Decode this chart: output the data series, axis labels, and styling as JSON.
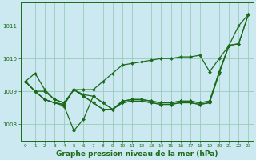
{
  "background_color": "#cce8f0",
  "grid_color": "#99ccbb",
  "line_color": "#1a6b1a",
  "marker_color": "#1a6b1a",
  "xlabel": "Graphe pression niveau de la mer (hPa)",
  "xlabel_fontsize": 6.5,
  "ylim": [
    1007.5,
    1011.7
  ],
  "xlim": [
    -0.5,
    23.5
  ],
  "yticks": [
    1008,
    1009,
    1010,
    1011
  ],
  "xticks": [
    0,
    1,
    2,
    3,
    4,
    5,
    6,
    7,
    8,
    9,
    10,
    11,
    12,
    13,
    14,
    15,
    16,
    17,
    18,
    19,
    20,
    21,
    22,
    23
  ],
  "series": [
    {
      "x": [
        0,
        1,
        2,
        3,
        4,
        5,
        6,
        7,
        8,
        9,
        10,
        11,
        12,
        13,
        14,
        15,
        16,
        17,
        18,
        19,
        20,
        21,
        22,
        23
      ],
      "y": [
        1009.3,
        1009.55,
        1009.05,
        1008.75,
        1008.65,
        1009.05,
        1009.05,
        1009.05,
        1009.3,
        1009.55,
        1009.8,
        1009.85,
        1009.9,
        1009.95,
        1010.0,
        1010.0,
        1010.05,
        1010.05,
        1010.1,
        1009.6,
        1010.0,
        1010.4,
        1010.45,
        1011.35
      ]
    },
    {
      "x": [
        0,
        1,
        2,
        3,
        4,
        5,
        6,
        7,
        8,
        9,
        10,
        11,
        12,
        13,
        14,
        15,
        16,
        17,
        18,
        19,
        20,
        21,
        22,
        23
      ],
      "y": [
        1009.3,
        1009.0,
        1009.0,
        1008.75,
        1008.65,
        1009.05,
        1008.9,
        1008.85,
        1008.65,
        1008.45,
        1008.7,
        1008.75,
        1008.75,
        1008.7,
        1008.65,
        1008.65,
        1008.7,
        1008.7,
        1008.65,
        1008.7,
        1009.6,
        1010.4,
        1010.45,
        1011.35
      ]
    },
    {
      "x": [
        0,
        1,
        2,
        3,
        4,
        5,
        6,
        7,
        8,
        9,
        10,
        11,
        12,
        13,
        14,
        15,
        16,
        17,
        18,
        19,
        20,
        21,
        22,
        23
      ],
      "y": [
        1009.3,
        1009.0,
        1008.75,
        1008.65,
        1008.55,
        1007.8,
        1008.15,
        1008.85,
        1008.65,
        1008.45,
        1008.7,
        1008.75,
        1008.75,
        1008.7,
        1008.65,
        1008.65,
        1008.7,
        1008.7,
        1008.65,
        1008.7,
        1009.6,
        1010.4,
        1011.0,
        1011.35
      ]
    },
    {
      "x": [
        0,
        1,
        2,
        3,
        4,
        5,
        6,
        7,
        8,
        9,
        10,
        11,
        12,
        13,
        14,
        15,
        16,
        17,
        18,
        19,
        20,
        21,
        22,
        23
      ],
      "y": [
        1009.3,
        1009.0,
        1008.75,
        1008.65,
        1008.6,
        1009.05,
        1008.85,
        1008.65,
        1008.45,
        1008.45,
        1008.65,
        1008.7,
        1008.7,
        1008.65,
        1008.6,
        1008.6,
        1008.65,
        1008.65,
        1008.6,
        1008.65,
        1009.55,
        1010.4,
        null,
        null
      ]
    },
    {
      "x": [
        0,
        1,
        2,
        3,
        4,
        5,
        6,
        7,
        8,
        9,
        10,
        11,
        12,
        13,
        14,
        15,
        16,
        17,
        18,
        19,
        20,
        21,
        22,
        23
      ],
      "y": [
        1009.3,
        1009.0,
        1008.75,
        1008.65,
        1008.6,
        1009.05,
        1008.85,
        1008.65,
        1008.45,
        1008.45,
        1008.65,
        1008.7,
        1008.7,
        1008.65,
        1008.6,
        1008.6,
        1008.65,
        1008.65,
        1008.6,
        1008.65,
        null,
        null,
        null,
        null
      ]
    }
  ]
}
